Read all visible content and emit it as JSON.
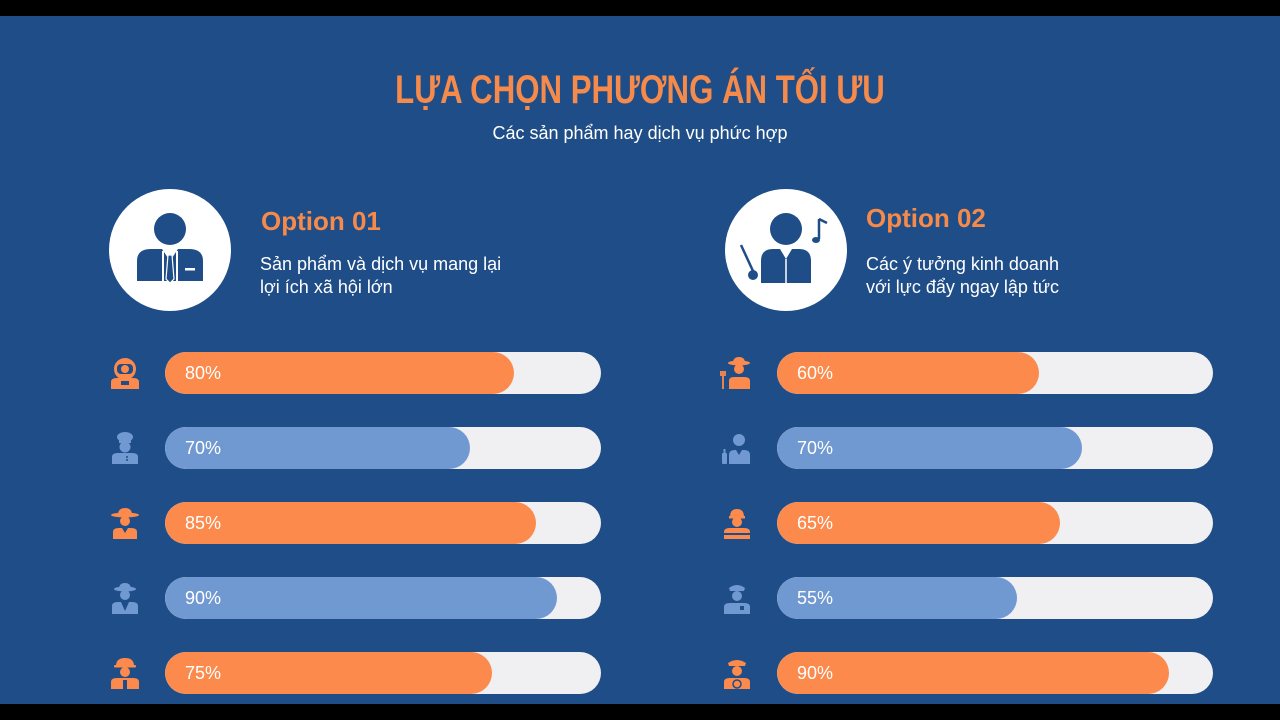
{
  "header": {
    "title": "LỰA CHỌN PHƯƠNG ÁN TỐI ƯU",
    "subtitle": "Các sản phẩm hay dịch vụ phức hợp"
  },
  "options": [
    {
      "title": "Option 01",
      "desc_line1": "Sản phẩm và dịch vụ mang lại",
      "desc_line2": "lợi ích xã hội lớn",
      "avatar_icon": "businessman-icon",
      "bars": [
        {
          "label": "80%",
          "value": 80,
          "color": "orange",
          "icon": "astronaut-icon"
        },
        {
          "label": "70%",
          "value": 70,
          "color": "blue",
          "icon": "chef-icon"
        },
        {
          "label": "85%",
          "value": 85,
          "color": "orange",
          "icon": "cowboy-icon"
        },
        {
          "label": "90%",
          "value": 90,
          "color": "blue",
          "icon": "detective-icon"
        },
        {
          "label": "75%",
          "value": 75,
          "color": "orange",
          "icon": "firefighter-icon"
        }
      ]
    },
    {
      "title": "Option 02",
      "desc_line1": "Các ý tưởng kinh doanh",
      "desc_line2": "với lực đẩy ngay lập tức",
      "avatar_icon": "conductor-icon",
      "bars": [
        {
          "label": "60%",
          "value": 60,
          "color": "orange",
          "icon": "farmer-icon"
        },
        {
          "label": "70%",
          "value": 70,
          "color": "blue",
          "icon": "bartender-icon"
        },
        {
          "label": "65%",
          "value": 65,
          "color": "orange",
          "icon": "worker-icon"
        },
        {
          "label": "55%",
          "value": 55,
          "color": "blue",
          "icon": "police-icon"
        },
        {
          "label": "90%",
          "value": 90,
          "color": "orange",
          "icon": "captain-icon"
        }
      ]
    }
  ],
  "colors": {
    "background": "#1f4d87",
    "accent_orange": "#fb8a4c",
    "accent_blue": "#7199d1",
    "track": "#f0f0f2"
  }
}
